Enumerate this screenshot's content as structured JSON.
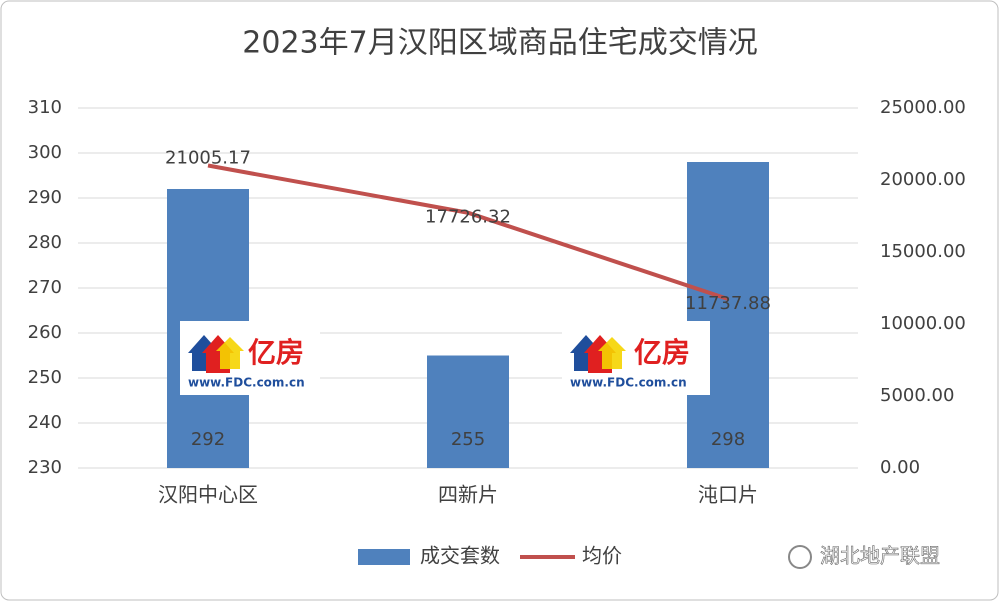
{
  "chart_data": {
    "type": "bar-line",
    "title": "2023年7月汉阳区域商品住宅成交情况",
    "categories": [
      "汉阳中心区",
      "四新片",
      "沌口片"
    ],
    "series": [
      {
        "name": "成交套数",
        "type": "bar",
        "color": "#4f81bd",
        "values": [
          292,
          255,
          298
        ]
      },
      {
        "name": "均价",
        "type": "line",
        "axis": "y2",
        "color": "#c0504d",
        "values": [
          21005.17,
          17726.32,
          11737.88
        ]
      }
    ],
    "ylim": [
      230,
      310
    ],
    "yticks": [
      230,
      240,
      250,
      260,
      270,
      280,
      290,
      300,
      310
    ],
    "y2lim": [
      0,
      25000
    ],
    "y2ticks": [
      {
        "value": 0,
        "label": "0.00"
      },
      {
        "value": 5000,
        "label": "5000.00"
      },
      {
        "value": 10000,
        "label": "10000.00"
      },
      {
        "value": 15000,
        "label": "15000.00"
      },
      {
        "value": 20000,
        "label": "20000.00"
      },
      {
        "value": 25000,
        "label": "25000.00"
      }
    ],
    "grid": true,
    "legend": "bottom",
    "watermark": {
      "brand": "亿房",
      "url": "www.FDC.com.cn",
      "account": "湖北地产联盟"
    }
  }
}
